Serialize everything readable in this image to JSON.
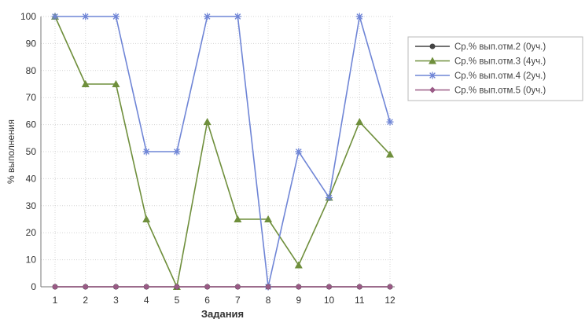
{
  "chart_data": {
    "type": "line",
    "title": "",
    "xlabel": "Задания",
    "ylabel": "% выполнения",
    "x": [
      "1",
      "2",
      "3",
      "4",
      "5",
      "6",
      "7",
      "8",
      "9",
      "10",
      "11",
      "12"
    ],
    "ylim": [
      0,
      100
    ],
    "yticks": [
      "0",
      "10",
      "20",
      "30",
      "40",
      "50",
      "60",
      "70",
      "80",
      "90",
      "100"
    ],
    "grid": true,
    "legend_position": "top-right",
    "series": [
      {
        "name": "Ср.% вып.отм.2 (0уч.)",
        "color": "#444444",
        "marker": "circle",
        "values": [
          0,
          0,
          0,
          0,
          0,
          0,
          0,
          0,
          0,
          0,
          0,
          0
        ]
      },
      {
        "name": "Ср.% вып.отм.3 (4уч.)",
        "color": "#6f8f3c",
        "marker": "triangle",
        "values": [
          100,
          75,
          75,
          25,
          0,
          61,
          25,
          25,
          8,
          33,
          61,
          49
        ]
      },
      {
        "name": "Ср.% вып.отм.4 (2уч.)",
        "color": "#6f85d6",
        "marker": "star",
        "values": [
          100,
          100,
          100,
          50,
          50,
          100,
          100,
          0,
          50,
          33,
          100,
          61
        ]
      },
      {
        "name": "Ср.% вып.отм.5 (0уч.)",
        "color": "#9a5a86",
        "marker": "diamond",
        "values": [
          0,
          0,
          0,
          0,
          0,
          0,
          0,
          0,
          0,
          0,
          0,
          0
        ]
      }
    ]
  }
}
